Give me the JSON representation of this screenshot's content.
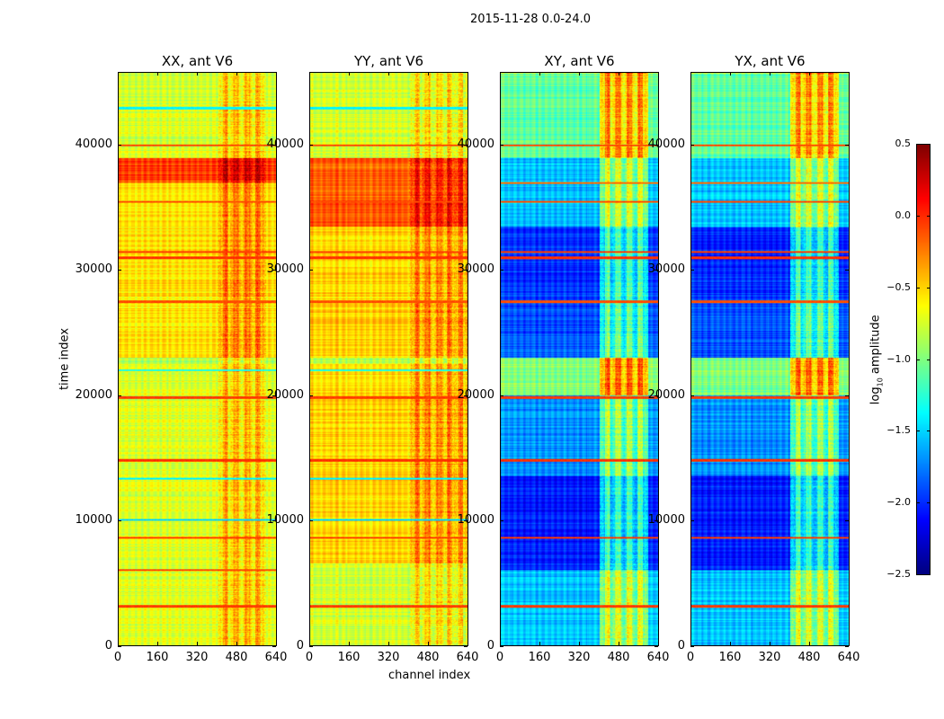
{
  "chart_data": {
    "type": "heatmap",
    "suptitle": "2015-11-28 0.0-24.0",
    "xlabel": "channel index",
    "ylabel": "time index",
    "xlim": [
      0,
      640
    ],
    "ylim": [
      0,
      45800
    ],
    "xticks": [
      "0",
      "160",
      "320",
      "480",
      "640"
    ],
    "yticks": [
      "0",
      "10000",
      "20000",
      "30000",
      "40000"
    ],
    "yticks_values": [
      0,
      10000,
      20000,
      30000,
      40000
    ],
    "xticks_values": [
      0,
      160,
      320,
      480,
      640
    ],
    "colorbar": {
      "label_main": "log",
      "label_sub": "10",
      "label_rest": " amplitude",
      "colormap": "jet",
      "range": [
        -2.5,
        0.5
      ],
      "ticks": [
        "0.5",
        "0.0",
        "−0.5",
        "−1.0",
        "−1.5",
        "−2.0",
        "−2.5"
      ],
      "tick_values": [
        0.5,
        0.0,
        -0.5,
        -1.0,
        -1.5,
        -2.0,
        -2.5
      ]
    },
    "panels": [
      {
        "title": "XX, ant V6",
        "time_bands": [
          [
            0,
            22500,
            -0.72
          ],
          [
            22500,
            23000,
            -0.85
          ],
          [
            23000,
            37000,
            -0.55
          ],
          [
            37000,
            39000,
            -0.05
          ],
          [
            39000,
            45800,
            -0.75
          ]
        ],
        "channel_band": {
          "range": [
            400,
            600
          ],
          "offset": 0.45
        },
        "lines": [
          [
            3100,
            -0.05
          ],
          [
            6000,
            -0.1
          ],
          [
            8600,
            -0.05
          ],
          [
            14800,
            -0.02
          ],
          [
            19800,
            -0.05
          ],
          [
            27500,
            -0.1
          ],
          [
            31000,
            -0.02
          ],
          [
            31500,
            -0.05
          ],
          [
            35500,
            -0.1
          ],
          [
            40000,
            -0.1
          ],
          [
            13300,
            -1.4
          ],
          [
            10000,
            -1.5
          ],
          [
            22000,
            -1.3
          ],
          [
            43000,
            -1.4
          ]
        ]
      },
      {
        "title": "YY, ant V6",
        "time_bands": [
          [
            0,
            6500,
            -0.75
          ],
          [
            6500,
            22500,
            -0.5
          ],
          [
            22500,
            23000,
            -0.85
          ],
          [
            23000,
            33500,
            -0.5
          ],
          [
            33500,
            39000,
            -0.15
          ],
          [
            39000,
            45800,
            -0.75
          ]
        ],
        "channel_band": {
          "range": [
            400,
            640
          ],
          "offset": 0.35
        },
        "lines": [
          [
            3100,
            -0.05
          ],
          [
            8600,
            -0.05
          ],
          [
            14800,
            -0.02
          ],
          [
            19800,
            -0.05
          ],
          [
            27500,
            -0.1
          ],
          [
            31000,
            -0.02
          ],
          [
            31500,
            -0.05
          ],
          [
            35500,
            -0.1
          ],
          [
            40000,
            -0.1
          ],
          [
            13300,
            -1.4
          ],
          [
            10000,
            -1.5
          ],
          [
            22000,
            -1.3
          ],
          [
            43000,
            -1.4
          ]
        ]
      },
      {
        "title": "XY, ant V6",
        "time_bands": [
          [
            0,
            6000,
            -1.55
          ],
          [
            6000,
            13500,
            -2.05
          ],
          [
            13500,
            20000,
            -1.7
          ],
          [
            20000,
            23000,
            -1.0
          ],
          [
            23000,
            28000,
            -1.9
          ],
          [
            28000,
            33500,
            -2.0
          ],
          [
            33500,
            39000,
            -1.55
          ],
          [
            39000,
            45800,
            -1.1
          ]
        ],
        "channel_band": {
          "range": [
            400,
            600
          ],
          "offset": 1.1
        },
        "lines": [
          [
            3100,
            -0.05
          ],
          [
            8600,
            -0.05
          ],
          [
            14800,
            -0.02
          ],
          [
            19800,
            -0.05
          ],
          [
            27500,
            -0.1
          ],
          [
            31000,
            -0.02
          ],
          [
            31500,
            -0.05
          ],
          [
            35500,
            -0.1
          ],
          [
            40000,
            -0.1
          ],
          [
            37000,
            -0.2
          ]
        ]
      },
      {
        "title": "YX, ant V6",
        "time_bands": [
          [
            0,
            6000,
            -1.55
          ],
          [
            6000,
            13500,
            -2.05
          ],
          [
            13500,
            20000,
            -1.7
          ],
          [
            20000,
            23000,
            -1.0
          ],
          [
            23000,
            28000,
            -1.9
          ],
          [
            28000,
            33500,
            -2.0
          ],
          [
            33500,
            39000,
            -1.55
          ],
          [
            39000,
            45800,
            -1.1
          ]
        ],
        "channel_band": {
          "range": [
            400,
            600
          ],
          "offset": 1.1
        },
        "lines": [
          [
            3100,
            -0.05
          ],
          [
            8600,
            -0.05
          ],
          [
            14800,
            -0.02
          ],
          [
            19800,
            -0.05
          ],
          [
            27500,
            -0.1
          ],
          [
            31000,
            -0.02
          ],
          [
            31500,
            -0.05
          ],
          [
            35500,
            -0.1
          ],
          [
            40000,
            -0.1
          ],
          [
            37000,
            -0.2
          ]
        ]
      }
    ]
  }
}
